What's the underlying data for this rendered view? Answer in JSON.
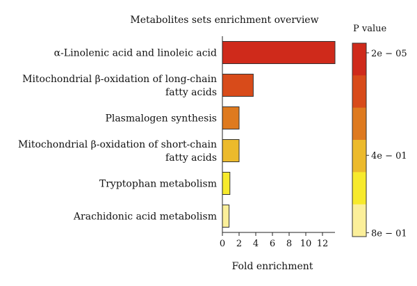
{
  "chart_data": {
    "type": "bar",
    "orientation": "horizontal",
    "title": "Metabolites sets enrichment overview",
    "xlabel": "Fold enrichment",
    "ylabel": "",
    "xlim": [
      0,
      13.5
    ],
    "xticks": [
      0,
      2,
      4,
      6,
      8,
      10,
      12
    ],
    "grid": false,
    "categories": [
      [
        "α-Linolenic acid and linoleic acid"
      ],
      [
        "Mitochondrial β-oxidation of long-chain",
        "fatty acids"
      ],
      [
        "Plasmalogen synthesis"
      ],
      [
        "Mitochondrial β-oxidation of short-chain",
        "fatty acids"
      ],
      [
        "Tryptophan metabolism"
      ],
      [
        "Arachidonic acid metabolism"
      ]
    ],
    "values": [
      13.5,
      3.7,
      2.0,
      2.0,
      0.9,
      0.8
    ],
    "bar_colors": [
      "#cf2a1b",
      "#d84b1a",
      "#de7a1f",
      "#ecba2c",
      "#f7ea2c",
      "#fbef9a"
    ],
    "colorbar": {
      "title": "P value",
      "tick_labels": [
        "2e − 05",
        "4e − 01",
        "8e − 01"
      ],
      "tick_positions": [
        0.95,
        0.42,
        0.02
      ],
      "colors_top_to_bottom": [
        "#cf2a1b",
        "#d84b1a",
        "#de7a1f",
        "#ecba2c",
        "#f7ea2c",
        "#fbef9a"
      ]
    }
  }
}
